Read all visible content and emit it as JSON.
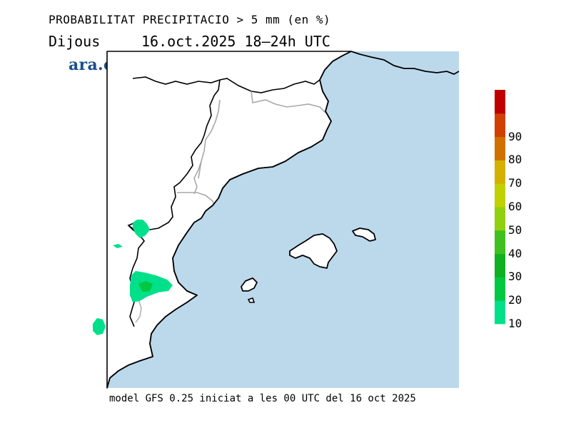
{
  "header": {
    "title": "PROBABILITAT PRECIPITACIO > 5 mm (en %)",
    "day": "Dijous",
    "date_range": "16.oct.2025 18–24h UTC"
  },
  "logo": {
    "text": "ara.cat"
  },
  "footer": {
    "model_info": "model GFS 0.25 iniciat a les 00 UTC del 16 oct 2025"
  },
  "legend": {
    "labels": [
      "10",
      "20",
      "30",
      "40",
      "50",
      "60",
      "70",
      "80",
      "90"
    ],
    "colors": [
      "#00e08a",
      "#00c840",
      "#10b020",
      "#40c020",
      "#90d010",
      "#c0d000",
      "#d4b000",
      "#d07000",
      "#d04000",
      "#c00000"
    ]
  },
  "map": {
    "sea_color": "#bcd9ec",
    "land_color": "#ffffff",
    "coast_color": "#000000",
    "border_color": "#a8a8a8",
    "precip_probability_areas": [
      {
        "area": "north-west inland",
        "level": "10-20"
      },
      {
        "area": "western small patch",
        "level": "10-20"
      },
      {
        "area": "southern inland",
        "level": "10-30"
      },
      {
        "area": "south-west patch",
        "level": "10-20"
      }
    ]
  }
}
